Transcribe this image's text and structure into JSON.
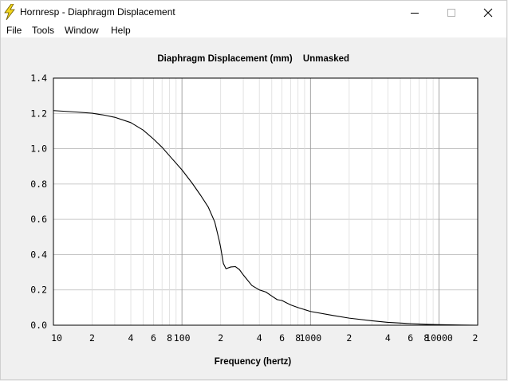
{
  "window": {
    "title": "Hornresp - Diaphragm Displacement"
  },
  "menu": {
    "file": "File",
    "tools": "Tools",
    "window": "Window",
    "help": "Help"
  },
  "chart_data": {
    "type": "line",
    "title": "Diaphragm Displacement (mm)",
    "subtitle": "Unmasked",
    "xlabel": "Frequency (hertz)",
    "ylabel": "",
    "xscale": "log",
    "xlim": [
      10,
      20000
    ],
    "ylim": [
      0,
      1.4
    ],
    "grid": true,
    "y_ticks": [
      "0.0",
      "0.2",
      "0.4",
      "0.6",
      "0.8",
      "1.0",
      "1.2",
      "1.4"
    ],
    "x_ticks": [
      {
        "value": 10,
        "label": "10"
      },
      {
        "value": 20,
        "label": "2"
      },
      {
        "value": 40,
        "label": "4"
      },
      {
        "value": 60,
        "label": "6"
      },
      {
        "value": 80,
        "label": "8"
      },
      {
        "value": 100,
        "label": "100"
      },
      {
        "value": 200,
        "label": "2"
      },
      {
        "value": 400,
        "label": "4"
      },
      {
        "value": 600,
        "label": "6"
      },
      {
        "value": 800,
        "label": "8"
      },
      {
        "value": 1000,
        "label": "1000"
      },
      {
        "value": 2000,
        "label": "2"
      },
      {
        "value": 4000,
        "label": "4"
      },
      {
        "value": 6000,
        "label": "6"
      },
      {
        "value": 8000,
        "label": "8"
      },
      {
        "value": 10000,
        "label": "10000"
      },
      {
        "value": 20000,
        "label": "2"
      }
    ],
    "series": [
      {
        "color": "#000000",
        "x": [
          10,
          15,
          20,
          25,
          30,
          40,
          50,
          60,
          70,
          80,
          100,
          120,
          140,
          160,
          180,
          195,
          200,
          210,
          220,
          240,
          260,
          280,
          300,
          350,
          400,
          450,
          500,
          550,
          600,
          700,
          800,
          1000,
          1500,
          2000,
          3000,
          4000,
          6000,
          8000,
          10000,
          15000,
          20000
        ],
        "y": [
          1.216,
          1.208,
          1.201,
          1.19,
          1.178,
          1.148,
          1.105,
          1.055,
          1.008,
          0.96,
          0.88,
          0.805,
          0.735,
          0.67,
          0.585,
          0.48,
          0.44,
          0.35,
          0.32,
          0.33,
          0.332,
          0.315,
          0.285,
          0.225,
          0.2,
          0.188,
          0.165,
          0.145,
          0.14,
          0.115,
          0.1,
          0.078,
          0.055,
          0.04,
          0.025,
          0.016,
          0.009,
          0.005,
          0.003,
          0.001,
          0.0
        ]
      }
    ]
  }
}
